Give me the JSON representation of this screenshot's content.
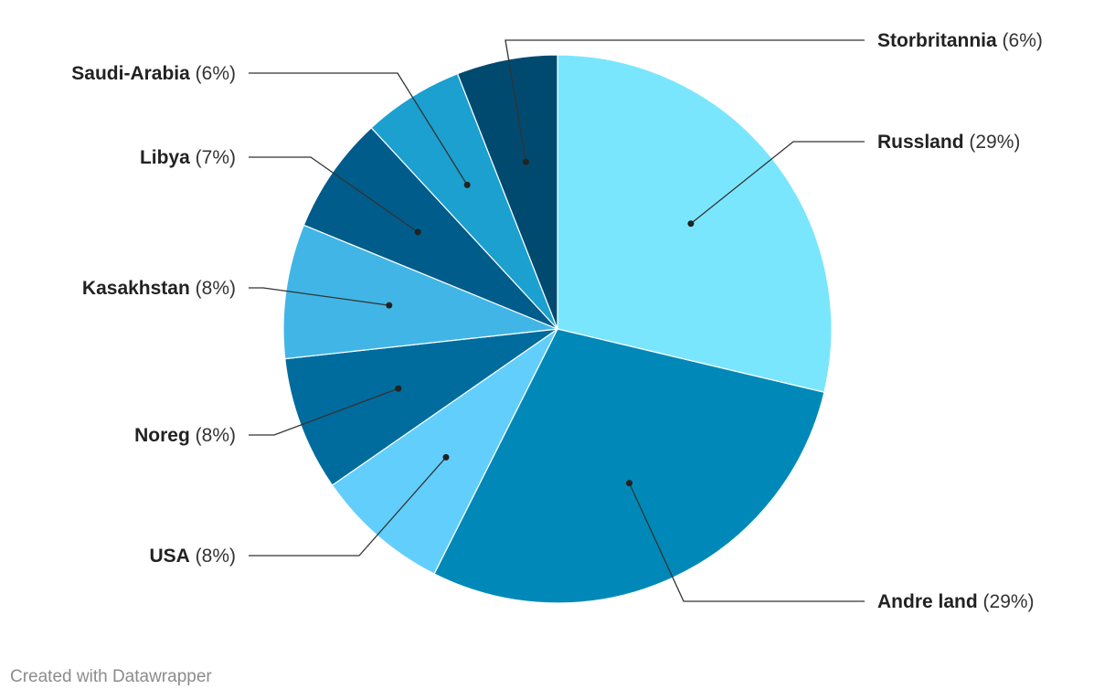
{
  "chart_data": {
    "type": "pie",
    "slices": [
      {
        "label": "Russland",
        "value": 29,
        "pct_label": "(29%)",
        "color": "#7ae6fd"
      },
      {
        "label": "Andre land",
        "value": 29,
        "pct_label": "(29%)",
        "color": "#0089b8"
      },
      {
        "label": "USA",
        "value": 8,
        "pct_label": "(8%)",
        "color": "#62cefb"
      },
      {
        "label": "Noreg",
        "value": 8,
        "pct_label": "(8%)",
        "color": "#006c9e"
      },
      {
        "label": "Kasakhstan",
        "value": 8,
        "pct_label": "(8%)",
        "color": "#41b6e6"
      },
      {
        "label": "Libya",
        "value": 7,
        "pct_label": "(7%)",
        "color": "#005c8a"
      },
      {
        "label": "Saudi-Arabia",
        "value": 6,
        "pct_label": "(6%)",
        "color": "#1ba0cf"
      },
      {
        "label": "Storbritannia",
        "value": 6,
        "pct_label": "(6%)",
        "color": "#004a70"
      }
    ],
    "start": "12 o'clock",
    "direction": "clockwise"
  },
  "footer": {
    "credit": "Created with Datawrapper"
  }
}
